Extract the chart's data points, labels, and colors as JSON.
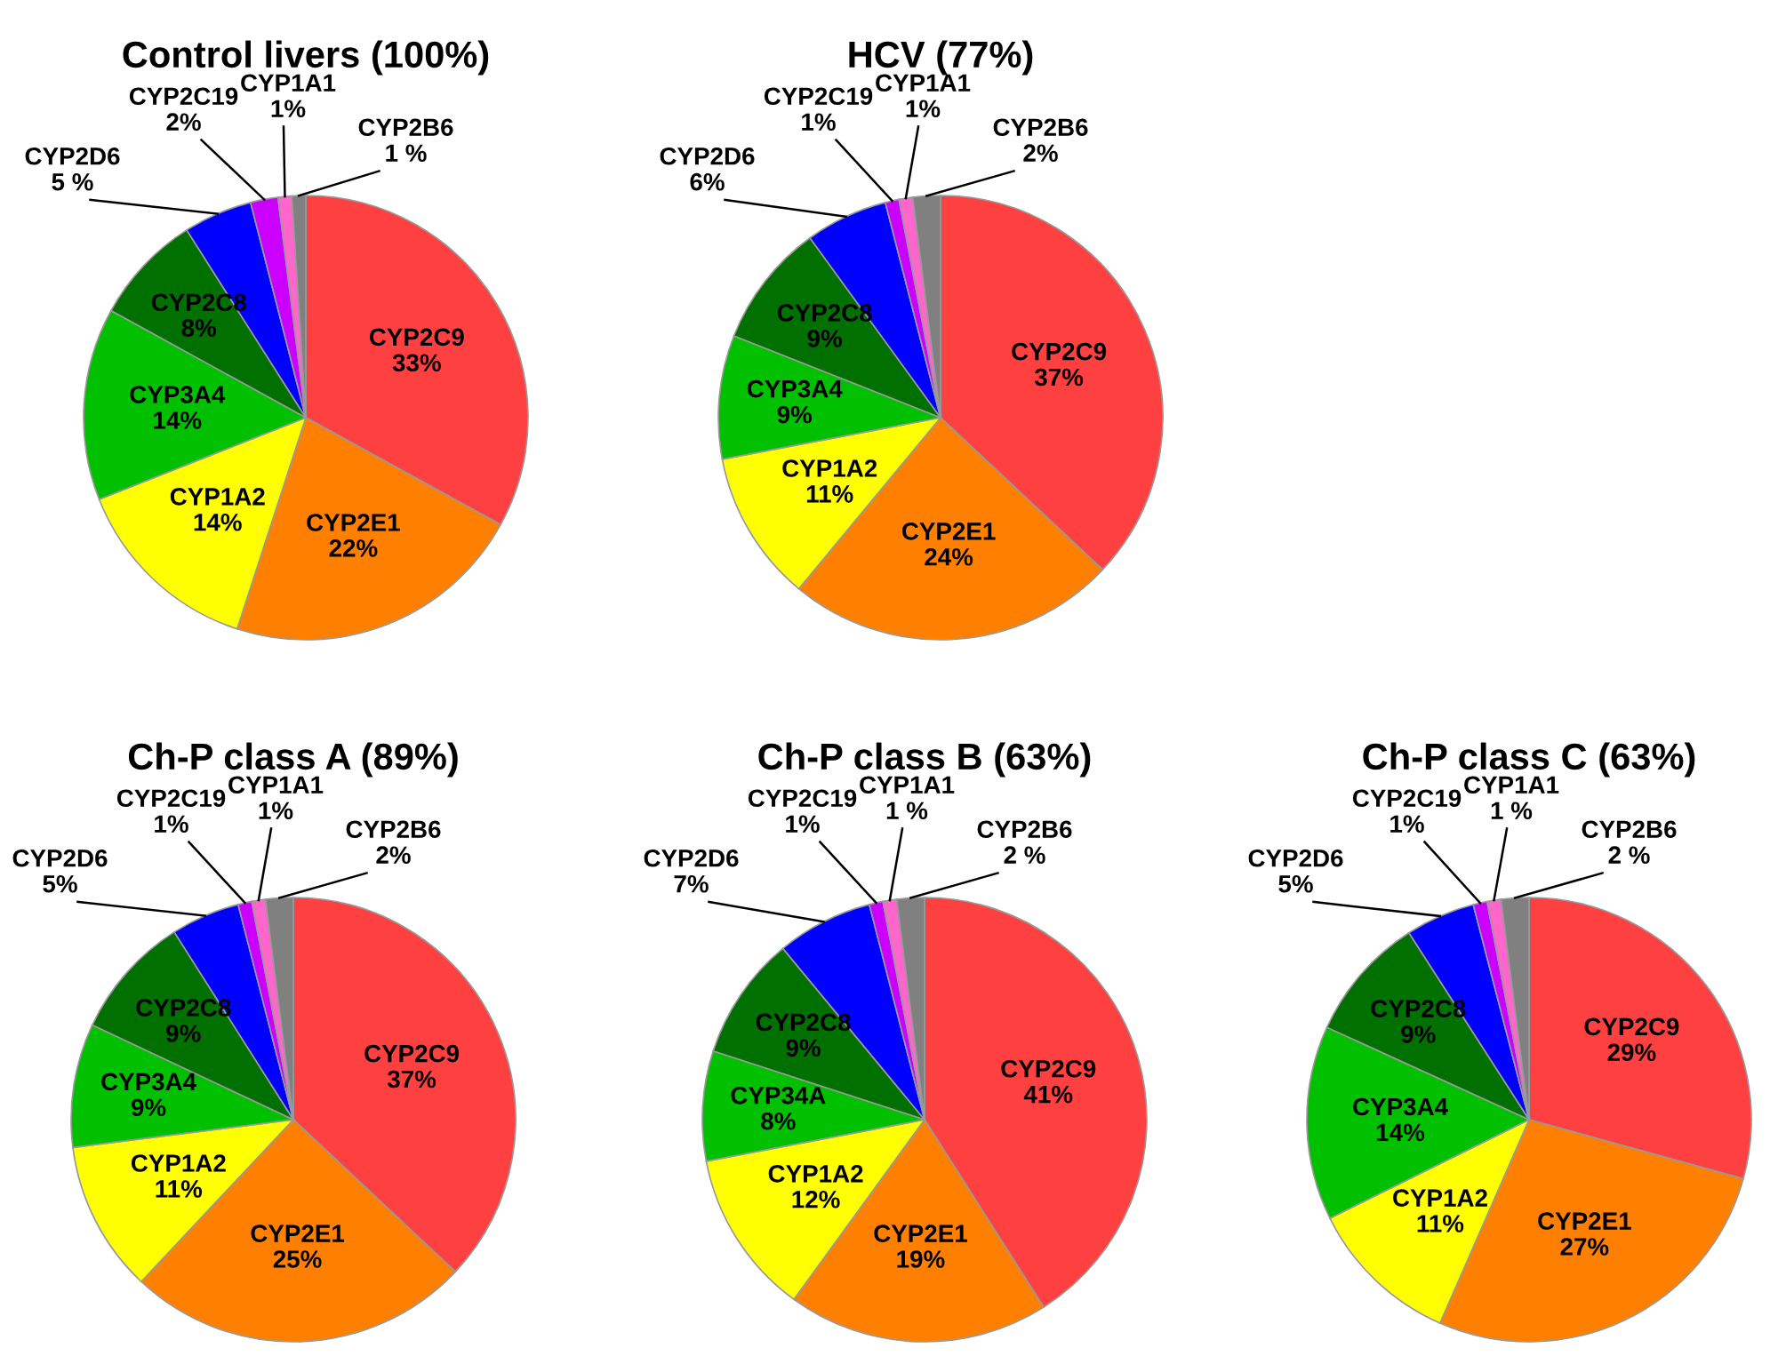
{
  "chart_data": [
    {
      "type": "pie",
      "title": "Control livers (100%)",
      "categories": [
        "CYP2C9",
        "CYP2E1",
        "CYP1A2",
        "CYP3A4",
        "CYP2C8",
        "CYP2D6",
        "CYP2C19",
        "CYP1A1",
        "CYP2B6"
      ],
      "values": [
        33,
        22,
        14,
        14,
        8,
        5,
        2,
        1,
        1
      ],
      "value_labels": [
        "33%",
        "22%",
        "14%",
        "14%",
        "8%",
        "5 %",
        "2%",
        "1%",
        "1 %"
      ],
      "colors": [
        "#ff4040",
        "#ff8000",
        "#ffff00",
        "#00c000",
        "#007000",
        "#0000ff",
        "#cc00ff",
        "#ff66cc",
        "#808080"
      ]
    },
    {
      "type": "pie",
      "title": "HCV (77%)",
      "categories": [
        "CYP2C9",
        "CYP2E1",
        "CYP1A2",
        "CYP3A4",
        "CYP2C8",
        "CYP2D6",
        "CYP2C19",
        "CYP1A1",
        "CYP2B6"
      ],
      "values": [
        37,
        24,
        11,
        9,
        9,
        6,
        1,
        1,
        2
      ],
      "value_labels": [
        "37%",
        "24%",
        "11%",
        "9%",
        "9%",
        "6%",
        "1%",
        "1%",
        "2%"
      ],
      "colors": [
        "#ff4040",
        "#ff8000",
        "#ffff00",
        "#00c000",
        "#007000",
        "#0000ff",
        "#cc00ff",
        "#ff66cc",
        "#808080"
      ]
    },
    {
      "type": "pie",
      "title": "Ch-P class A (89%)",
      "categories": [
        "CYP2C9",
        "CYP2E1",
        "CYP1A2",
        "CYP3A4",
        "CYP2C8",
        "CYP2D6",
        "CYP2C19",
        "CYP1A1",
        "CYP2B6"
      ],
      "values": [
        37,
        25,
        11,
        9,
        9,
        5,
        1,
        1,
        2
      ],
      "value_labels": [
        "37%",
        "25%",
        "11%",
        "9%",
        "9%",
        "5%",
        "1%",
        "1%",
        "2%"
      ],
      "colors": [
        "#ff4040",
        "#ff8000",
        "#ffff00",
        "#00c000",
        "#007000",
        "#0000ff",
        "#cc00ff",
        "#ff66cc",
        "#808080"
      ]
    },
    {
      "type": "pie",
      "title": "Ch-P class B (63%)",
      "categories": [
        "CYP2C9",
        "CYP2E1",
        "CYP1A2",
        "CYP34A",
        "CYP2C8",
        "CYP2D6",
        "CYP2C19",
        "CYP1A1",
        "CYP2B6"
      ],
      "values": [
        41,
        19,
        12,
        8,
        9,
        7,
        1,
        1,
        2
      ],
      "value_labels": [
        "41%",
        "19%",
        "12%",
        "8%",
        "9%",
        "7%",
        "1%",
        "1 %",
        "2 %"
      ],
      "colors": [
        "#ff4040",
        "#ff8000",
        "#ffff00",
        "#00c000",
        "#007000",
        "#0000ff",
        "#cc00ff",
        "#ff66cc",
        "#808080"
      ]
    },
    {
      "type": "pie",
      "title": "Ch-P class C (63%)",
      "categories": [
        "CYP2C9",
        "CYP2E1",
        "CYP1A2",
        "CYP3A4",
        "CYP2C8",
        "CYP2D6",
        "CYP2C19",
        "CYP1A1",
        "CYP2B6"
      ],
      "values": [
        29,
        27,
        11,
        14,
        9,
        5,
        1,
        1,
        2
      ],
      "value_labels": [
        "29%",
        "27%",
        "11%",
        "14%",
        "9%",
        "5%",
        "1%",
        "1 %",
        "2 %"
      ],
      "colors": [
        "#ff4040",
        "#ff8000",
        "#ffff00",
        "#00c000",
        "#007000",
        "#0000ff",
        "#cc00ff",
        "#ff66cc",
        "#808080"
      ]
    }
  ]
}
